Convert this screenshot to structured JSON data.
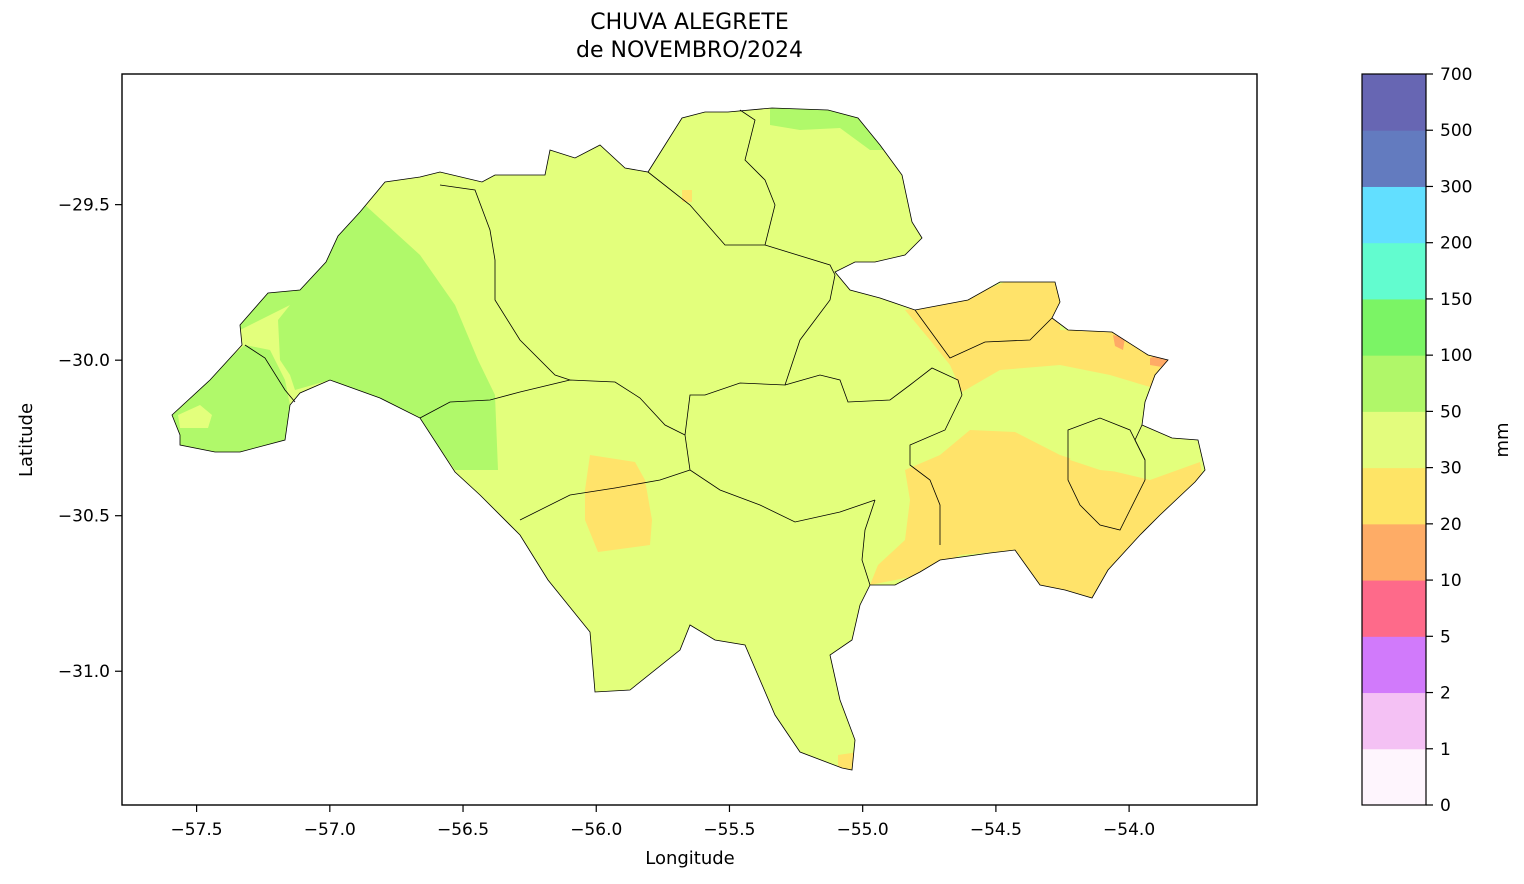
{
  "map": {
    "title_line1": "CHUVA ALEGRETE",
    "title_line2": "de NOVEMBRO/2024",
    "xlabel": "Longitude",
    "ylabel": "Latitude",
    "xlim": [
      -57.78,
      -53.52
    ],
    "ylim": [
      -31.43,
      -29.08
    ],
    "xticks": [
      -57.5,
      -57.0,
      -56.5,
      -56.0,
      -55.5,
      -55.0,
      -54.5,
      -54.0
    ],
    "xtick_labels": [
      "−57.5",
      "−57.0",
      "−56.5",
      "−56.0",
      "−55.5",
      "−55.0",
      "−54.5",
      "−54.0"
    ],
    "yticks": [
      -29.5,
      -30.0,
      -30.5,
      -31.0
    ],
    "ytick_labels": [
      "−29.5",
      "−30.0",
      "−30.5",
      "−31.0"
    ],
    "background_color": "#ffffff",
    "region_colors": {
      "30-50": "#e3ff7c",
      "50-100": "#b0f96a",
      "20-30": "#ffe36a",
      "10-20": "#ffaa66"
    }
  },
  "colorbar": {
    "label": "mm",
    "tick_labels": [
      "0",
      "1",
      "2",
      "5",
      "10",
      "20",
      "30",
      "50",
      "100",
      "150",
      "200",
      "300",
      "500",
      "700"
    ],
    "colors": [
      "#fef5fd",
      "#f4c1f4",
      "#d17afb",
      "#fe6a8a",
      "#feac66",
      "#fee466",
      "#e3fc7d",
      "#b0f769",
      "#7bf465",
      "#62fccf",
      "#62dfff",
      "#637bbf",
      "#6766b3"
    ]
  }
}
